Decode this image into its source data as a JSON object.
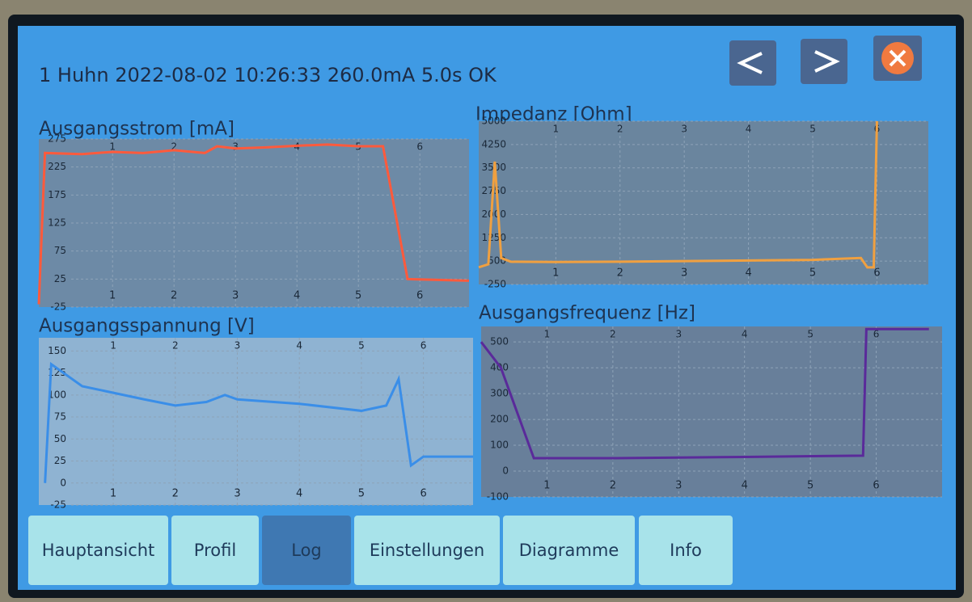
{
  "header": {
    "title": "1 Huhn 2022-08-02 10:26:33 260.0mA 5.0s OK"
  },
  "tabs": [
    {
      "label": "Hauptansicht"
    },
    {
      "label": "Profil"
    },
    {
      "label": "Log",
      "active": true
    },
    {
      "label": "Einstellungen"
    },
    {
      "label": "Diagramme"
    },
    {
      "label": "Info"
    }
  ],
  "chart_data": [
    {
      "type": "line",
      "title": "Ausgangsstrom [mA]",
      "color": "#ff5a3c",
      "grid": true,
      "x": [
        -0.2,
        -0.1,
        0.5,
        1,
        1.5,
        2,
        2.5,
        2.7,
        3,
        3.5,
        4,
        4.5,
        5,
        5.4,
        5.8,
        6.8
      ],
      "values": [
        -20,
        250,
        248,
        252,
        250,
        255,
        250,
        262,
        258,
        260,
        263,
        265,
        262,
        262,
        25,
        22
      ],
      "xlim": [
        -0.2,
        6.8
      ],
      "ylim": [
        -25,
        275
      ],
      "xticks": [
        1,
        2,
        3,
        4,
        5,
        6
      ],
      "yticks": [
        -25,
        25,
        75,
        125,
        175,
        225,
        275
      ]
    },
    {
      "type": "line",
      "title": "Impedanz [Ohm]",
      "color": "#f0a040",
      "grid": true,
      "x": [
        -0.2,
        -0.05,
        0.05,
        0.15,
        0.3,
        1,
        2,
        3,
        4,
        5,
        5.75,
        5.85,
        5.95,
        6.0
      ],
      "values": [
        300,
        400,
        3700,
        600,
        480,
        470,
        480,
        500,
        520,
        540,
        600,
        300,
        300,
        5000
      ],
      "xlim": [
        -0.2,
        6.8
      ],
      "ylim": [
        -250,
        5000
      ],
      "xticks": [
        1,
        2,
        3,
        4,
        5,
        6
      ],
      "yticks": [
        -250,
        500,
        1250,
        2000,
        2750,
        3500,
        4250,
        5000
      ]
    },
    {
      "type": "line",
      "title": "Ausgangsspannung [V]",
      "color": "#3a8ee8",
      "grid": true,
      "x": [
        -0.1,
        0,
        0.5,
        1.5,
        2,
        2.5,
        2.8,
        3,
        4,
        5,
        5.4,
        5.6,
        5.8,
        6.0,
        6.8
      ],
      "values": [
        0,
        135,
        110,
        95,
        88,
        92,
        100,
        95,
        90,
        82,
        88,
        118,
        20,
        30,
        30
      ],
      "xlim": [
        -0.2,
        6.8
      ],
      "ylim": [
        -25,
        165
      ],
      "xticks": [
        1,
        2,
        3,
        4,
        5,
        6
      ],
      "yticks": [
        -25,
        0,
        25,
        50,
        75,
        100,
        125,
        150
      ]
    },
    {
      "type": "line",
      "title": "Ausgangsfrequenz [Hz]",
      "color": "#5a2a9a",
      "grid": true,
      "x": [
        0,
        0.3,
        0.8,
        2,
        4,
        5.8,
        5.85,
        6.8
      ],
      "values": [
        500,
        400,
        50,
        50,
        55,
        60,
        550,
        550
      ],
      "xlim": [
        0,
        7
      ],
      "ylim": [
        -100,
        560
      ],
      "xticks": [
        1,
        2,
        3,
        4,
        5,
        6
      ],
      "yticks": [
        -100,
        0,
        100,
        200,
        300,
        400,
        500
      ]
    }
  ]
}
